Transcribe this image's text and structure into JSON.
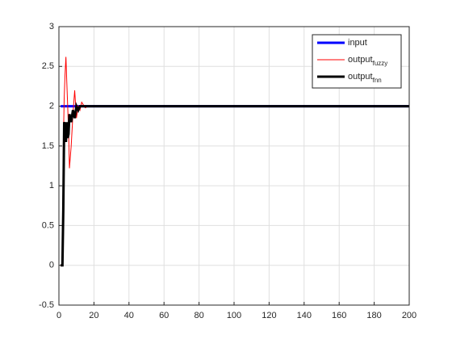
{
  "chart_data": {
    "type": "line",
    "x": [
      1,
      2,
      2.5,
      3,
      3.5,
      4,
      4.5,
      5,
      5.5,
      6,
      7,
      8,
      9,
      10,
      11,
      12,
      13,
      15,
      17,
      20,
      200
    ],
    "series": [
      {
        "name": "input",
        "color": "#0000ff",
        "width": 3,
        "values": [
          2,
          2,
          2,
          2,
          2,
          2,
          2,
          2,
          2,
          2,
          2,
          2,
          2,
          2,
          2,
          2,
          2,
          2,
          2,
          2,
          2
        ]
      },
      {
        "name": "output",
        "subscript": "fuzzy",
        "color": "#ff0000",
        "width": 1,
        "values": [
          0,
          0,
          1.5,
          2.1,
          2.4,
          2.62,
          2.3,
          2.0,
          1.7,
          1.22,
          1.5,
          1.9,
          2.2,
          1.85,
          2.0,
          1.95,
          2.05,
          1.98,
          2.0,
          2.0,
          2.0
        ]
      },
      {
        "name": "output",
        "subscript": "fnn",
        "color": "#000000",
        "width": 3,
        "values": [
          0,
          0,
          0.7,
          1.8,
          1.75,
          1.55,
          1.8,
          1.6,
          1.65,
          1.9,
          1.8,
          1.95,
          1.85,
          2.0,
          1.95,
          2.0,
          2.0,
          2.0,
          2.0,
          2.0,
          2.0
        ]
      }
    ],
    "xlim": [
      0,
      200
    ],
    "xticks": [
      0,
      20,
      40,
      60,
      80,
      100,
      120,
      140,
      160,
      180,
      200
    ],
    "ylim": [
      -0.5,
      3
    ],
    "yticks": [
      -0.5,
      0,
      0.5,
      1,
      1.5,
      2,
      2.5,
      3
    ],
    "grid": true,
    "legend": "top-right"
  }
}
